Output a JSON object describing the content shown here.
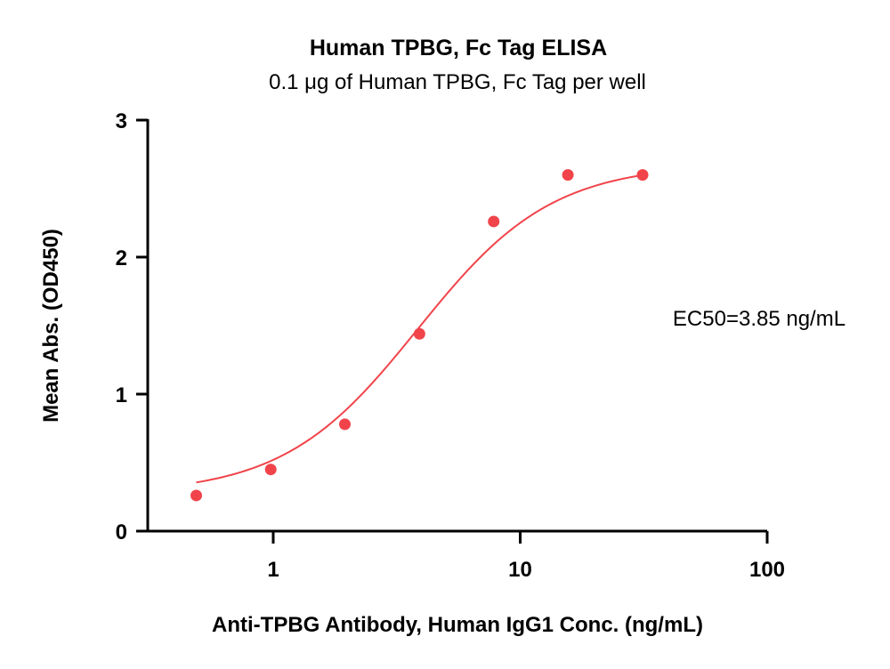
{
  "chart_data": {
    "type": "scatter",
    "title": "Human TPBG, Fc Tag ELISA",
    "subtitle": "0.1 μg of Human TPBG, Fc Tag per well",
    "xlabel": "Anti-TPBG Antibody, Human IgG1 Conc. (ng/mL)",
    "ylabel": "Mean Abs. (OD450)",
    "xscale": "log",
    "xlim": [
      0.3,
      100
    ],
    "ylim": [
      0,
      3
    ],
    "x_ticks": [
      1,
      10,
      100
    ],
    "x_tick_labels": [
      "1",
      "10",
      "100"
    ],
    "y_ticks": [
      0,
      1,
      2,
      3
    ],
    "y_tick_labels": [
      "0",
      "1",
      "2",
      "3"
    ],
    "grid": false,
    "legend": "none",
    "color": "#f0444a",
    "series": [
      {
        "points": [
          {
            "x": 0.488,
            "y": 0.26
          },
          {
            "x": 0.977,
            "y": 0.45
          },
          {
            "x": 1.95,
            "y": 0.78
          },
          {
            "x": 3.91,
            "y": 1.44
          },
          {
            "x": 7.81,
            "y": 2.26
          },
          {
            "x": 15.6,
            "y": 2.6
          },
          {
            "x": 31.3,
            "y": 2.6
          }
        ],
        "fit": {
          "model": "4PL",
          "bottom": 0.27,
          "top": 2.68,
          "ec50": 3.85,
          "hill": 1.6,
          "x_range": [
            0.488,
            31.3
          ]
        }
      }
    ],
    "annotation": "EC50=3.85 ng/mL"
  }
}
